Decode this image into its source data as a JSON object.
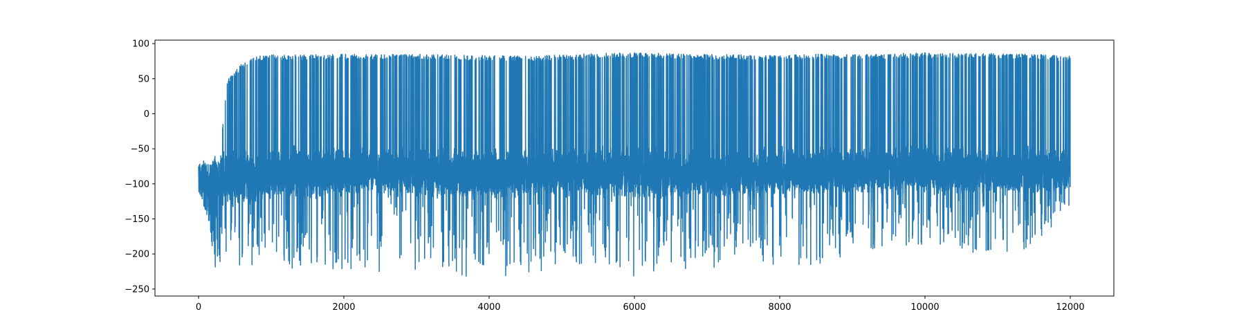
{
  "chart_data": {
    "type": "line",
    "title": "",
    "xlabel": "",
    "ylabel": "",
    "xlim": [
      -600,
      12600
    ],
    "ylim": [
      -260,
      105
    ],
    "x_ticks": [
      0,
      2000,
      4000,
      6000,
      8000,
      10000,
      12000
    ],
    "x_tick_labels": [
      "0",
      "2000",
      "4000",
      "6000",
      "8000",
      "10000",
      "12000"
    ],
    "y_ticks": [
      100,
      50,
      0,
      -50,
      -100,
      -150,
      -200,
      -250
    ],
    "y_tick_labels": [
      "100",
      "50",
      "0",
      "−50",
      "−100",
      "−150",
      "−200",
      "−250"
    ],
    "grid": false,
    "legend": "none",
    "series": [
      {
        "color": "#1f77b4",
        "x_range": [
          0,
          12000
        ],
        "n_points": 12001,
        "envelope_x": [
          0,
          50,
          100,
          150,
          200,
          300,
          400,
          600,
          800,
          1000,
          1500,
          2000,
          2500,
          3000,
          3500,
          4000,
          4500,
          5000,
          5500,
          6000,
          6500,
          7000,
          7500,
          8000,
          8500,
          9000,
          9500,
          10000,
          10500,
          11000,
          11500,
          12000
        ],
        "envelope_max": [
          -63,
          -60,
          -58,
          -55,
          -50,
          -45,
          50,
          72,
          82,
          84,
          84,
          85,
          85,
          85,
          84,
          83,
          82,
          84,
          86,
          87,
          86,
          85,
          84,
          83,
          85,
          84,
          86,
          87,
          86,
          86,
          85,
          82
        ],
        "envelope_min": [
          -110,
          -125,
          -140,
          -160,
          -222,
          -215,
          -215,
          -220,
          -222,
          -218,
          -225,
          -225,
          -225,
          -227,
          -233,
          -230,
          -234,
          -215,
          -225,
          -235,
          -225,
          -233,
          -200,
          -222,
          -215,
          -205,
          -200,
          -185,
          -200,
          -205,
          -195,
          -135
        ],
        "band_upper": [
          -63,
          -60,
          -58,
          -55,
          -50,
          -45,
          -45,
          -45,
          -42,
          -42,
          -40,
          -40,
          -40,
          -42,
          -42,
          -42,
          -45,
          -42,
          -40,
          -40,
          -42,
          -42,
          -40,
          -40,
          -40,
          -40,
          -40,
          -40,
          -40,
          -40,
          -40,
          -40
        ],
        "band_lower": [
          -110,
          -118,
          -125,
          -130,
          -135,
          -140,
          -140,
          -140,
          -135,
          -130,
          -128,
          -125,
          -125,
          -125,
          -128,
          -128,
          -125,
          -125,
          -128,
          -130,
          -128,
          -125,
          -125,
          -125,
          -122,
          -122,
          -122,
          -122,
          -122,
          -122,
          -122,
          -120
        ]
      }
    ]
  }
}
